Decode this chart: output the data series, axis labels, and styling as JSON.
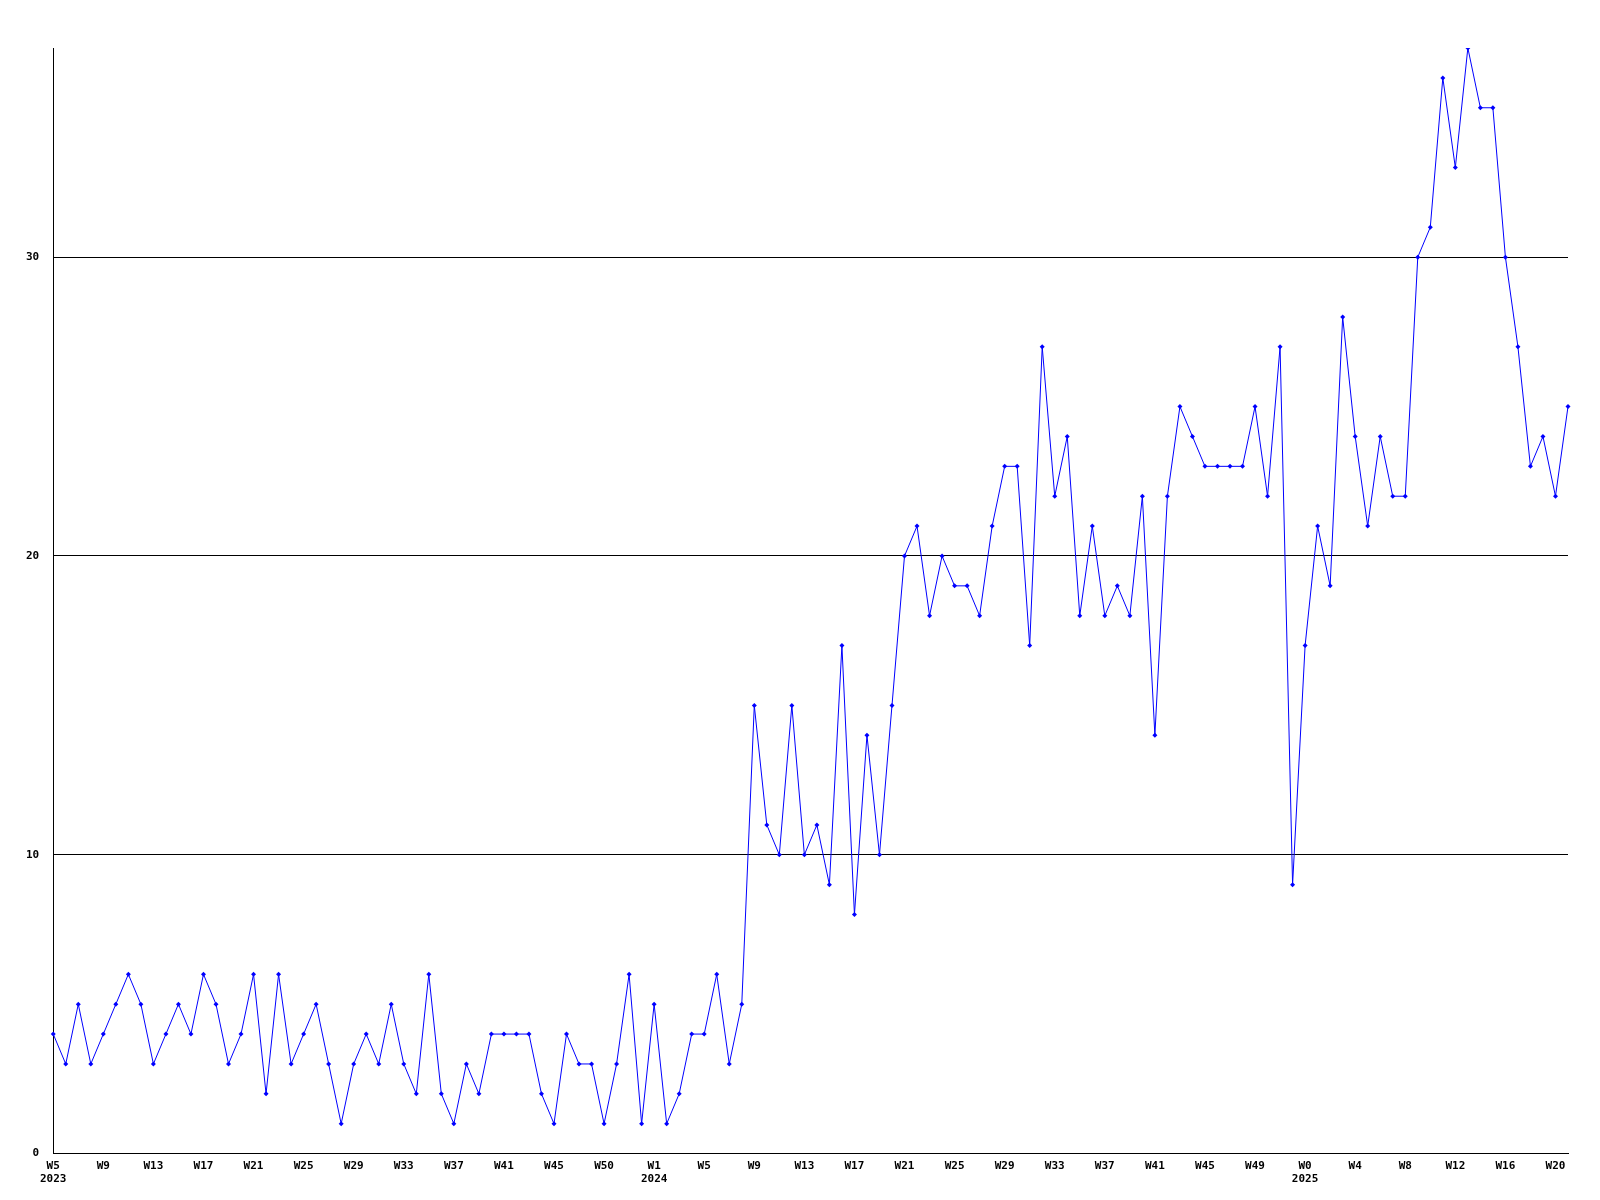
{
  "chart_data": {
    "type": "line",
    "categories": [
      "W5\n2023",
      null,
      null,
      null,
      "W9",
      null,
      null,
      null,
      "W13",
      null,
      null,
      null,
      "W17",
      null,
      null,
      null,
      "W21",
      null,
      null,
      null,
      "W25",
      null,
      null,
      null,
      "W29",
      null,
      null,
      null,
      "W33",
      null,
      null,
      null,
      "W37",
      null,
      null,
      null,
      "W41",
      null,
      null,
      null,
      "W45",
      null,
      null,
      null,
      "W50",
      null,
      null,
      null,
      "W1\n2024",
      null,
      null,
      null,
      "W5",
      null,
      null,
      null,
      "W9",
      null,
      null,
      null,
      "W13",
      null,
      null,
      null,
      "W17",
      null,
      null,
      null,
      "W21",
      null,
      null,
      null,
      "W25",
      null,
      null,
      null,
      "W29",
      null,
      null,
      null,
      "W33",
      null,
      null,
      null,
      "W37",
      null,
      null,
      null,
      "W41",
      null,
      null,
      null,
      "W45",
      null,
      null,
      null,
      "W49",
      null,
      null,
      null,
      "W0\n2025",
      null,
      null,
      null,
      "W4",
      null,
      null,
      null,
      "W8",
      null,
      null,
      null,
      "W12",
      null,
      null,
      null,
      "W16",
      null,
      null,
      null,
      "W20",
      null
    ],
    "series": [
      {
        "color": "#0000ff",
        "values": [
          4,
          3,
          5,
          3,
          4,
          5,
          6,
          5,
          3,
          4,
          5,
          4,
          6,
          5,
          3,
          4,
          6,
          2,
          6,
          3,
          4,
          5,
          3,
          1,
          3,
          4,
          3,
          5,
          3,
          2,
          6,
          2,
          1,
          3,
          2,
          4,
          4,
          4,
          4,
          2,
          1,
          4,
          3,
          3,
          1,
          3,
          6,
          1,
          5,
          1,
          2,
          4,
          4,
          6,
          3,
          5,
          15,
          11,
          10,
          15,
          10,
          11,
          9,
          17,
          8,
          14,
          10,
          15,
          20,
          21,
          18,
          20,
          19,
          19,
          18,
          21,
          23,
          23,
          17,
          27,
          22,
          24,
          18,
          21,
          18,
          19,
          18,
          22,
          14,
          22,
          25,
          24,
          23,
          23,
          23,
          23,
          25,
          22,
          27,
          9,
          17,
          21,
          19,
          28,
          24,
          21,
          24,
          22,
          22,
          30,
          31,
          36,
          33,
          37,
          35,
          35,
          30,
          27,
          23,
          24,
          22,
          25
        ]
      }
    ],
    "ylim": [
      0,
      37
    ],
    "yticks": [
      0,
      10,
      20,
      30
    ],
    "grid": "y",
    "marker": "diamond",
    "line_style": "solid",
    "legend": false
  }
}
